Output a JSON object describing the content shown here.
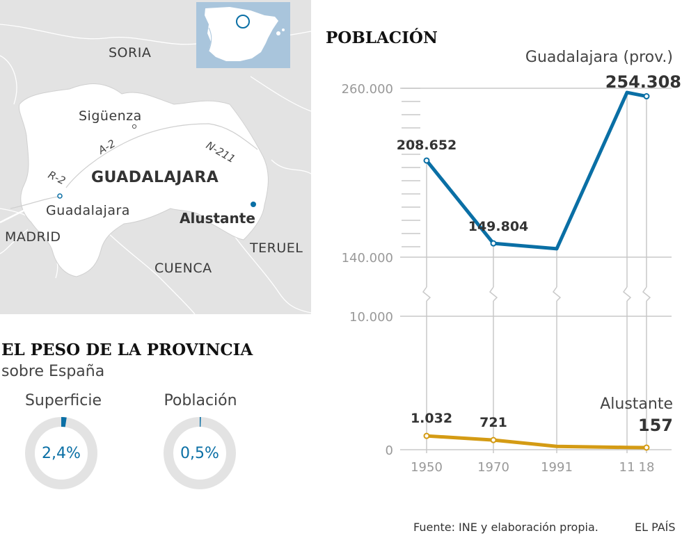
{
  "map": {
    "places": [
      "SORIA",
      "Sigüenza",
      "GUADALAJARA",
      "Guadalajara",
      "Alustante",
      "MADRID",
      "CUENCA",
      "TERUEL"
    ],
    "roads": [
      "A-2",
      "N-211",
      "R-2"
    ]
  },
  "chart_title": "POBLACIÓN",
  "weight": {
    "title": "EL PESO DE LA PROVINCIA",
    "subtitle": "sobre España",
    "items": [
      {
        "label": "Superficie",
        "value": "2,4%",
        "fraction": 0.024
      },
      {
        "label": "Población",
        "value": "0,5%",
        "fraction": 0.005
      }
    ]
  },
  "chart_data": {
    "type": "line",
    "x": [
      1950,
      1970,
      1991,
      2011,
      2018
    ],
    "x_tick_labels": [
      "1950",
      "1970",
      "1991",
      "11",
      "18"
    ],
    "y_tick_labels": [
      "260.000",
      "140.000",
      "10.000",
      "0"
    ],
    "y_axis": "broken axis",
    "series": [
      {
        "name": "Guadalajara (prov.)",
        "values": [
          208652,
          149804,
          146000,
          257000,
          254308
        ],
        "labels": [
          "208.652",
          "149.804",
          "",
          "",
          "254.308"
        ],
        "color": "#0a6fa5"
      },
      {
        "name": "Alustante",
        "values": [
          1032,
          721,
          250,
          170,
          157
        ],
        "labels": [
          "1.032",
          "721",
          "",
          "",
          "157"
        ],
        "color": "#d49b14"
      }
    ]
  },
  "footer": {
    "source": "Fuente: INE y elaboración propia.",
    "brand": "EL PAÍS"
  },
  "colors": {
    "blue": "#0a6fa5",
    "gold": "#d49b14",
    "map_bg": "#e3e3e3",
    "province": "#ffffff",
    "inset_sea": "#a9c5dc",
    "grid": "#c8c8c8"
  }
}
